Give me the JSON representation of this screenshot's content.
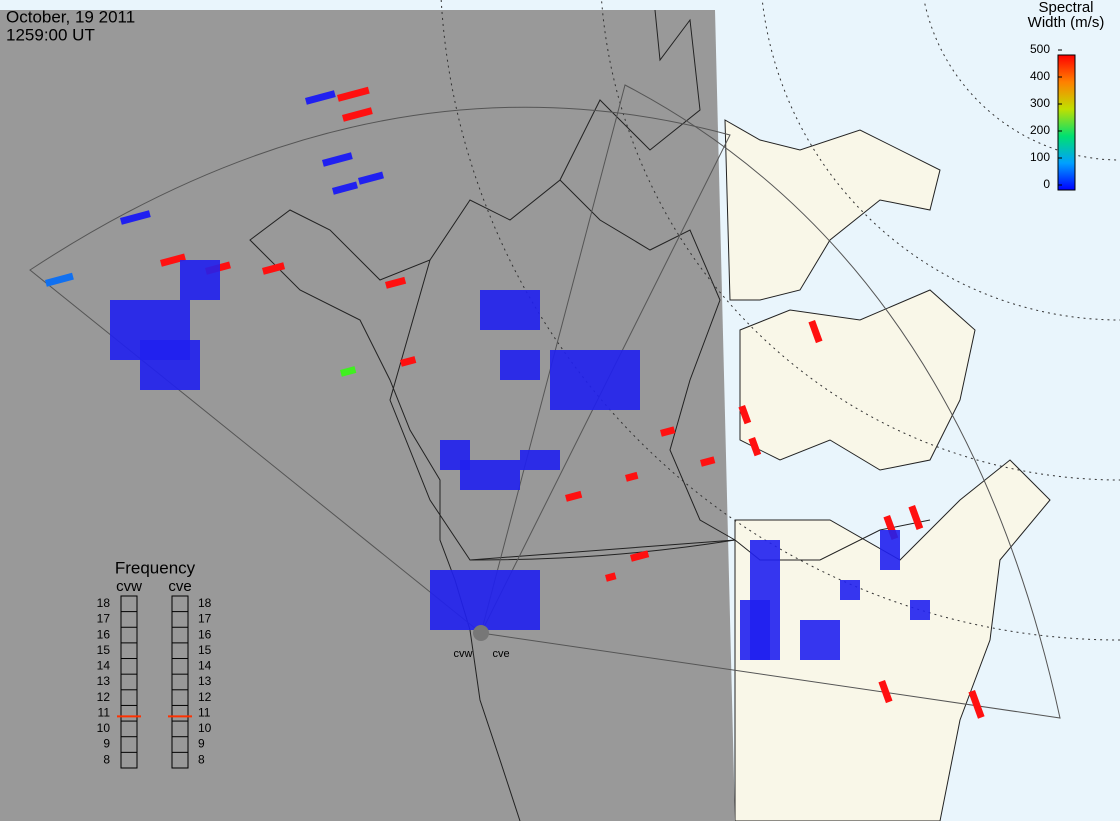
{
  "header": {
    "date": "October, 19 2011",
    "time": "1259:00 UT"
  },
  "colorbar": {
    "title_line1": "Spectral",
    "title_line2": "Width (m/s)",
    "lim": [
      0,
      500
    ],
    "ticks": [
      0,
      100,
      200,
      300,
      400,
      500
    ]
  },
  "frequency": {
    "title": "Frequency",
    "lim": [
      7.5,
      18.5
    ],
    "ticks": [
      8,
      9,
      10,
      11,
      12,
      13,
      14,
      15,
      16,
      17,
      18
    ],
    "radars": [
      {
        "name": "cvw",
        "value": 10.8
      },
      {
        "name": "cve",
        "value": 10.8
      }
    ]
  },
  "map": {
    "radar_labels": [
      "cvw",
      "cve"
    ]
  }
}
